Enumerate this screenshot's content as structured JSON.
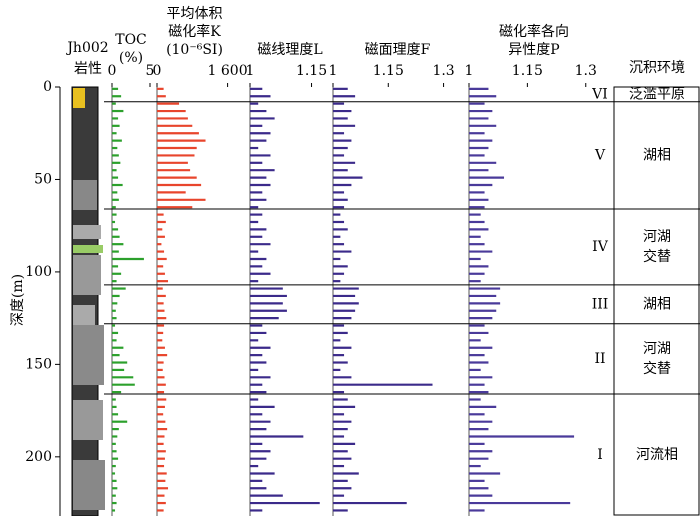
{
  "chart_data": {
    "type": "well-log",
    "well": "Jh002",
    "lithology_label": "岩性",
    "ylabel": "深度(m)",
    "ylim": [
      0,
      232
    ],
    "yticks": [
      0,
      50,
      100,
      150,
      200
    ],
    "y": [
      1,
      5,
      9,
      13,
      17,
      21,
      25,
      29,
      33,
      37,
      41,
      45,
      49,
      53,
      57,
      61,
      65,
      69,
      73,
      77,
      81,
      85,
      89,
      93,
      97,
      101,
      105,
      109,
      113,
      117,
      121,
      125,
      129,
      133,
      137,
      141,
      145,
      149,
      153,
      157,
      161,
      165,
      169,
      173,
      177,
      181,
      185,
      189,
      193,
      197,
      201,
      205,
      209,
      213,
      217,
      221,
      225,
      229
    ],
    "tracks": [
      {
        "title": [
          "TOC",
          "(%)"
        ],
        "color": "#2ca02c",
        "xlim": [
          0,
          5
        ],
        "xticks": [
          0,
          5
        ],
        "values": [
          0.8,
          1.2,
          0.5,
          1.5,
          0.8,
          1.0,
          0.6,
          1.3,
          0.7,
          0.9,
          1.1,
          0.6,
          0.8,
          1.4,
          0.7,
          0.9,
          0.5,
          0.6,
          0.4,
          0.8,
          1.0,
          1.5,
          0.9,
          4.2,
          0.8,
          1.2,
          0.6,
          1.8,
          1.0,
          0.7,
          0.5,
          0.6,
          0.4,
          0.8,
          0.6,
          1.5,
          1.0,
          2.0,
          1.6,
          2.8,
          3.0,
          1.2,
          0.5,
          0.6,
          0.8,
          2.0,
          0.9,
          0.7,
          0.5,
          0.6,
          0.8,
          0.5,
          0.4,
          0.6,
          0.7,
          0.5,
          0.6,
          0.4
        ]
      },
      {
        "title": [
          "平均体积",
          "磁化率K",
          "(10⁻⁶SI)"
        ],
        "color": "#e8452c",
        "xlim": [
          0,
          1700
        ],
        "xticks": [
          0,
          {
            "value": 1600,
            "label": "1 600"
          }
        ],
        "values": [
          150,
          200,
          500,
          650,
          700,
          800,
          950,
          1100,
          900,
          850,
          700,
          750,
          900,
          1000,
          650,
          1100,
          800,
          150,
          200,
          120,
          180,
          100,
          160,
          220,
          140,
          180,
          250,
          130,
          200,
          150,
          170,
          210,
          160,
          140,
          120,
          180,
          230,
          150,
          130,
          170,
          200,
          160,
          210,
          180,
          140,
          190,
          230,
          170,
          150,
          200,
          180,
          160,
          220,
          190,
          250,
          170,
          200,
          150
        ]
      },
      {
        "title": [
          "磁线理度L"
        ],
        "color": "#3b2a8a",
        "xlim": [
          1,
          1.195
        ],
        "xticks": [
          1,
          1.15
        ],
        "values": [
          1.03,
          1.05,
          1.02,
          1.04,
          1.06,
          1.03,
          1.05,
          1.04,
          1.02,
          1.05,
          1.03,
          1.06,
          1.04,
          1.05,
          1.03,
          1.04,
          1.02,
          1.03,
          1.02,
          1.04,
          1.03,
          1.05,
          1.02,
          1.04,
          1.03,
          1.05,
          1.02,
          1.08,
          1.09,
          1.08,
          1.09,
          1.07,
          1.03,
          1.04,
          1.02,
          1.05,
          1.03,
          1.04,
          1.02,
          1.05,
          1.03,
          1.04,
          1.02,
          1.06,
          1.03,
          1.05,
          1.04,
          1.13,
          1.03,
          1.05,
          1.04,
          1.02,
          1.06,
          1.03,
          1.04,
          1.08,
          1.17,
          1.03
        ]
      },
      {
        "title": [
          "磁面理度F"
        ],
        "color": "#3b2a8a",
        "xlim": [
          1,
          1.35
        ],
        "xticks": [
          1,
          1.15,
          1.3
        ],
        "values": [
          1.04,
          1.06,
          1.03,
          1.05,
          1.04,
          1.06,
          1.03,
          1.05,
          1.04,
          1.03,
          1.06,
          1.04,
          1.08,
          1.05,
          1.03,
          1.04,
          1.03,
          1.02,
          1.03,
          1.04,
          1.02,
          1.03,
          1.05,
          1.02,
          1.04,
          1.03,
          1.02,
          1.07,
          1.06,
          1.07,
          1.06,
          1.05,
          1.03,
          1.04,
          1.02,
          1.05,
          1.03,
          1.04,
          1.02,
          1.05,
          1.27,
          1.03,
          1.04,
          1.06,
          1.03,
          1.05,
          1.04,
          1.03,
          1.06,
          1.04,
          1.05,
          1.03,
          1.07,
          1.04,
          1.05,
          1.03,
          1.2,
          1.04
        ]
      },
      {
        "title": [
          "磁化率各向",
          "异性度P"
        ],
        "color": "#4a3a9a",
        "xlim": [
          1,
          1.37
        ],
        "xticks": [
          1,
          1.15,
          1.3
        ],
        "values": [
          1.05,
          1.07,
          1.04,
          1.06,
          1.05,
          1.07,
          1.04,
          1.06,
          1.05,
          1.04,
          1.07,
          1.05,
          1.09,
          1.06,
          1.04,
          1.05,
          1.04,
          1.03,
          1.04,
          1.05,
          1.03,
          1.04,
          1.06,
          1.03,
          1.05,
          1.04,
          1.03,
          1.08,
          1.07,
          1.08,
          1.07,
          1.06,
          1.04,
          1.05,
          1.03,
          1.06,
          1.04,
          1.05,
          1.03,
          1.06,
          1.04,
          1.05,
          1.03,
          1.07,
          1.04,
          1.06,
          1.05,
          1.27,
          1.04,
          1.06,
          1.05,
          1.03,
          1.08,
          1.04,
          1.05,
          1.06,
          1.26,
          1.04
        ]
      }
    ],
    "environment_header": "沉积环境",
    "zones": [
      {
        "label": "VI",
        "top": 0,
        "bottom": 8,
        "environment": [
          "泛滥平原"
        ]
      },
      {
        "label": "V",
        "top": 8,
        "bottom": 66,
        "environment": [
          "湖相"
        ]
      },
      {
        "label": "IV",
        "top": 66,
        "bottom": 107,
        "environment": [
          "河湖",
          "交替"
        ]
      },
      {
        "label": "III",
        "top": 107,
        "bottom": 128,
        "environment": [
          "湖相"
        ]
      },
      {
        "label": "II",
        "top": 128,
        "bottom": 166,
        "environment": [
          "河湖",
          "交替"
        ]
      },
      {
        "label": "I",
        "top": 166,
        "bottom": 232,
        "environment": [
          "河流相"
        ]
      }
    ]
  }
}
